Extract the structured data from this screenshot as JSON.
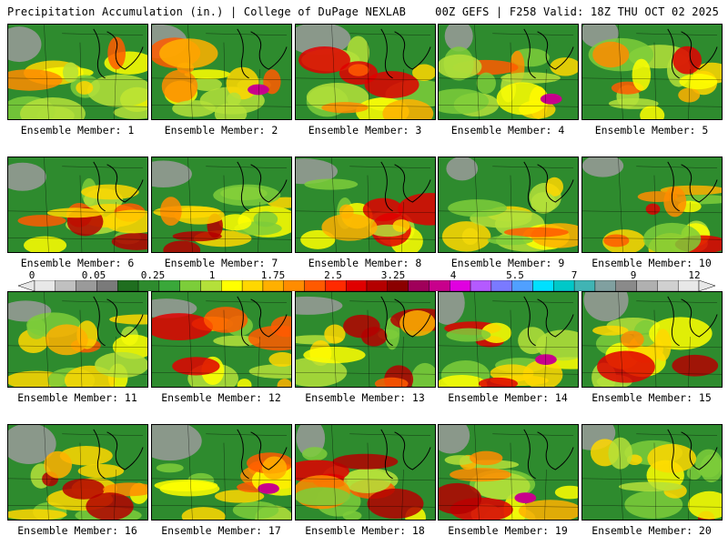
{
  "header": {
    "left": "Precipitation Accumulation (in.) | College of DuPage NEXLAB",
    "right": "00Z GEFS | F258 Valid: 18Z THU OCT 02 2025"
  },
  "panels": [
    "Ensemble Member: 1",
    "Ensemble Member: 2",
    "Ensemble Member: 3",
    "Ensemble Member: 4",
    "Ensemble Member: 5",
    "Ensemble Member: 6",
    "Ensemble Member: 7",
    "Ensemble Member: 8",
    "Ensemble Member: 9",
    "Ensemble Member: 10",
    "Ensemble Member: 11",
    "Ensemble Member: 12",
    "Ensemble Member: 13",
    "Ensemble Member: 14",
    "Ensemble Member: 15",
    "Ensemble Member: 16",
    "Ensemble Member: 17",
    "Ensemble Member: 18",
    "Ensemble Member: 19",
    "Ensemble Member: 20"
  ],
  "colorbar": {
    "ticks": [
      "0",
      "0.05",
      "0.25",
      "1",
      "1.75",
      "2.5",
      "3.25",
      "4",
      "5.5",
      "7",
      "9",
      "12"
    ],
    "colors": [
      "#e8e8e8",
      "#c0c0c0",
      "#9a9a9a",
      "#7a7a7a",
      "#1f6e1f",
      "#2e8b2e",
      "#3aa83a",
      "#7ccd3a",
      "#b4e03a",
      "#ffff00",
      "#ffd700",
      "#ffb000",
      "#ff8c00",
      "#ff5a00",
      "#ff2a00",
      "#e00000",
      "#b40000",
      "#8b0000",
      "#a0005a",
      "#c8008c",
      "#e000e0",
      "#b45aff",
      "#7a7aff",
      "#50a0ff",
      "#00e0ff",
      "#00c8c8",
      "#40b4b4",
      "#80a0a0",
      "#8a8a8a",
      "#b0b0b0",
      "#d0d0d0",
      "#e8e8e8"
    ]
  }
}
